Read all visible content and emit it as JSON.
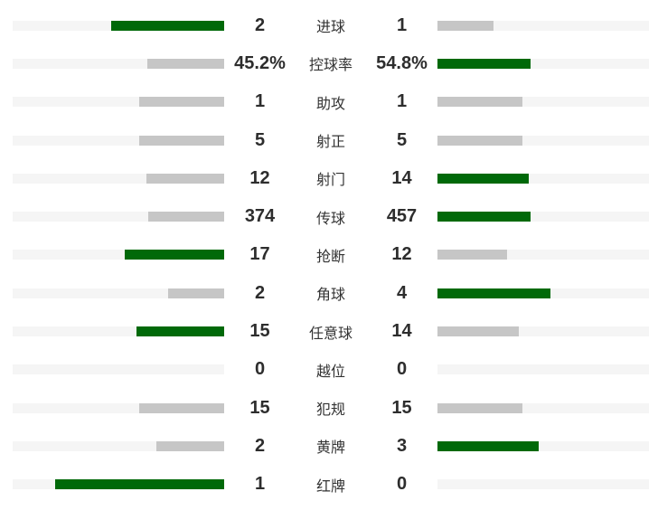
{
  "panel": {
    "background": "#ffffff"
  },
  "colors": {
    "leader_fill": "#006909",
    "neutral_fill": "#c6c6c6",
    "track": "#f5f5f5",
    "value_text": "#2d2d2d",
    "label_text": "#333333"
  },
  "chart_data": {
    "type": "bar",
    "subtype": "paired-horizontal-comparison",
    "title": "",
    "legend": "none",
    "grid": false,
    "bar_fill_rule": "width = 0.8 * value / (home + away) of track; leader bar green, trailing or tied bar gray, zero value empty",
    "categories": [
      "进球",
      "控球率",
      "助攻",
      "射正",
      "射门",
      "传球",
      "抢断",
      "角球",
      "任意球",
      "越位",
      "犯规",
      "黄牌",
      "红牌"
    ],
    "series": [
      {
        "name": "home",
        "side": "left",
        "values": [
          "2",
          "45.2%",
          "1",
          "5",
          "12",
          "374",
          "17",
          "2",
          "15",
          "0",
          "15",
          "2",
          "1"
        ]
      },
      {
        "name": "away",
        "side": "right",
        "values": [
          "1",
          "54.8%",
          "1",
          "5",
          "14",
          "457",
          "12",
          "4",
          "14",
          "0",
          "15",
          "3",
          "0"
        ]
      }
    ],
    "rows": [
      {
        "label": "进球",
        "home": "2",
        "away": "1"
      },
      {
        "label": "控球率",
        "home": "45.2%",
        "away": "54.8%"
      },
      {
        "label": "助攻",
        "home": "1",
        "away": "1"
      },
      {
        "label": "射正",
        "home": "5",
        "away": "5"
      },
      {
        "label": "射门",
        "home": "12",
        "away": "14"
      },
      {
        "label": "传球",
        "home": "374",
        "away": "457"
      },
      {
        "label": "抢断",
        "home": "17",
        "away": "12"
      },
      {
        "label": "角球",
        "home": "2",
        "away": "4"
      },
      {
        "label": "任意球",
        "home": "15",
        "away": "14"
      },
      {
        "label": "越位",
        "home": "0",
        "away": "0"
      },
      {
        "label": "犯规",
        "home": "15",
        "away": "15"
      },
      {
        "label": "黄牌",
        "home": "2",
        "away": "3"
      },
      {
        "label": "红牌",
        "home": "1",
        "away": "0"
      }
    ]
  }
}
